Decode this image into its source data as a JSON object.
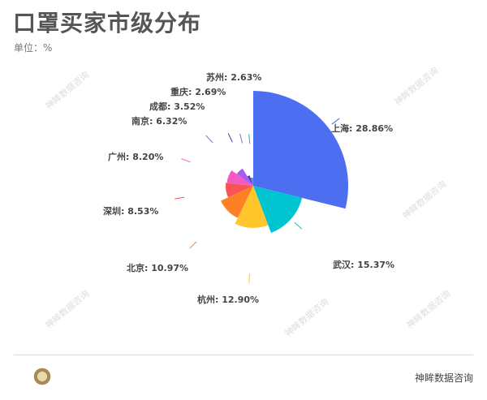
{
  "title": "口罩买家市级分布",
  "subtitle": "单位：%",
  "watermark": "神眸数据咨询",
  "footer": {
    "brand": "神眸数据咨询"
  },
  "chart_data": {
    "type": "pie",
    "rose": true,
    "categories": [
      "上海",
      "武汉",
      "杭州",
      "北京",
      "深圳",
      "广州",
      "南京",
      "成都",
      "重庆",
      "苏州"
    ],
    "values": [
      28.86,
      15.37,
      12.9,
      10.97,
      8.53,
      8.2,
      6.32,
      3.52,
      2.69,
      2.63
    ],
    "labels": [
      "上海: 28.86%",
      "武汉: 15.37%",
      "杭州: 12.90%",
      "北京: 10.97%",
      "深圳: 8.53%",
      "广州: 8.20%",
      "南京: 6.32%",
      "成都: 3.52%",
      "重庆: 2.69%",
      "苏州: 2.63%"
    ],
    "colors": [
      "#4e6ef2",
      "#00c5d1",
      "#ffc72c",
      "#ff7f27",
      "#f85454",
      "#f55ac0",
      "#a65cf5",
      "#3b3bb8",
      "#5a7ad6",
      "#1ab8c8"
    ]
  }
}
